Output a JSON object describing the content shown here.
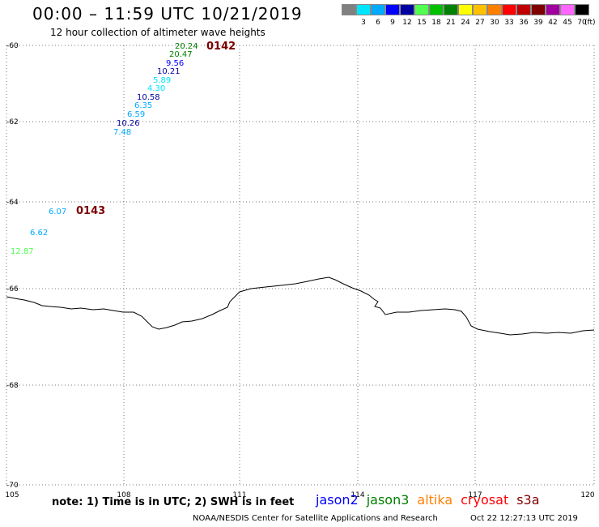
{
  "header": {
    "title": "00:00 – 11:59 UTC 10/21/2019",
    "subtitle": "12 hour collection of altimeter wave heights"
  },
  "color_scale": {
    "swatches": [
      {
        "label": "",
        "color": "#808080"
      },
      {
        "label": "3",
        "color": "#00e5ff"
      },
      {
        "label": "6",
        "color": "#00aaff"
      },
      {
        "label": "9",
        "color": "#0000ff"
      },
      {
        "label": "12",
        "color": "#0000a0"
      },
      {
        "label": "15",
        "color": "#50ff50"
      },
      {
        "label": "18",
        "color": "#00c000"
      },
      {
        "label": "21",
        "color": "#008000"
      },
      {
        "label": "24",
        "color": "#ffff00"
      },
      {
        "label": "27",
        "color": "#ffc000"
      },
      {
        "label": "30",
        "color": "#ff8000"
      },
      {
        "label": "33",
        "color": "#ff0000"
      },
      {
        "label": "36",
        "color": "#c00000"
      },
      {
        "label": "39",
        "color": "#800000"
      },
      {
        "label": "42",
        "color": "#a000a0"
      },
      {
        "label": "45",
        "color": "#ff66ff"
      },
      {
        "label": "70",
        "color": "#000000"
      }
    ],
    "unit": "(ft)"
  },
  "map": {
    "lat_labels": [
      "-60",
      "-62",
      "-64",
      "-66",
      "-68",
      "-70"
    ],
    "lon_labels": [
      "105",
      "108",
      "111",
      "114",
      "117",
      "120"
    ],
    "observations": [
      {
        "value": "20.24",
        "color": "#008000"
      },
      {
        "value": "20.47",
        "color": "#008000"
      },
      {
        "value": "9.56",
        "color": "#0000ff"
      },
      {
        "value": "10.21",
        "color": "#0000a0"
      },
      {
        "value": "5.89",
        "color": "#00e5ff"
      },
      {
        "value": "4.30",
        "color": "#00e5ff"
      },
      {
        "value": "10.58",
        "color": "#0000a0"
      },
      {
        "value": "6.35",
        "color": "#00aaff"
      },
      {
        "value": "6.59",
        "color": "#00aaff"
      },
      {
        "value": "10.26",
        "color": "#0000a0"
      },
      {
        "value": "7.48",
        "color": "#00aaff"
      },
      {
        "value": "6.07",
        "color": "#00aaff"
      },
      {
        "value": "6.62",
        "color": "#00aaff"
      },
      {
        "value": "12.87",
        "color": "#50ff50"
      }
    ],
    "track_ids": [
      {
        "label": "0142"
      },
      {
        "label": "0143"
      }
    ]
  },
  "footer": {
    "note": "note: 1) Time is in UTC; 2) SWH is in feet",
    "legend": [
      {
        "label": "jason2",
        "color": "#0000ff"
      },
      {
        "label": "jason3",
        "color": "#008000"
      },
      {
        "label": "altika",
        "color": "#ff8000"
      },
      {
        "label": "cryosat",
        "color": "#ff0000"
      },
      {
        "label": "s3a",
        "color": "#800000"
      }
    ],
    "credit": "NOAA/NESDIS Center for Satellite Applications and Research",
    "timestamp": "Oct 22 12:27:13 UTC 2019"
  }
}
